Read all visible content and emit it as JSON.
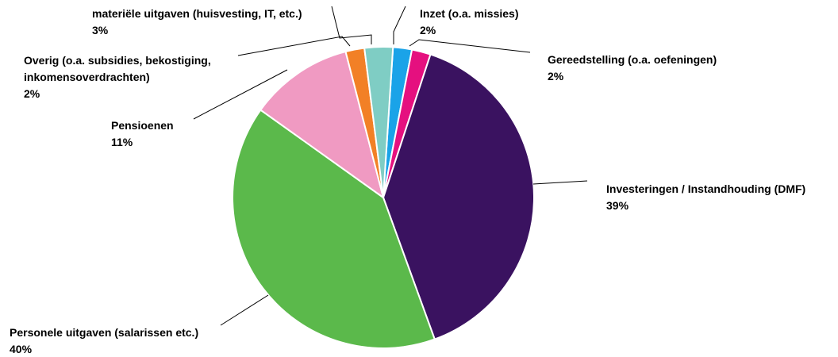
{
  "chart_data": {
    "type": "pie",
    "slices": [
      {
        "label": "Inzet (o.a. missies)",
        "label_lines": [
          "Inzet (o.a. missies)"
        ],
        "pct_text": "2%",
        "value": 2,
        "color": "#1aa3e8"
      },
      {
        "label": "Gereedstelling (o.a. oefeningen)",
        "label_lines": [
          "Gereedstelling (o.a. oefeningen)"
        ],
        "pct_text": "2%",
        "value": 2,
        "color": "#e5107f"
      },
      {
        "label": "Investeringen / Instandhouding (DMF)",
        "label_lines": [
          "Investeringen / Instandhouding (DMF)"
        ],
        "pct_text": "39%",
        "value": 39,
        "color": "#3a1260"
      },
      {
        "label": "Personele uitgaven (salarissen etc.)",
        "label_lines": [
          "Personele uitgaven (salarissen etc.)"
        ],
        "pct_text": "40%",
        "value": 40,
        "color": "#5bb94b"
      },
      {
        "label": "Pensioenen",
        "label_lines": [
          "Pensioenen"
        ],
        "pct_text": "11%",
        "value": 11,
        "color": "#f09ac2"
      },
      {
        "label": "Overig (o.a. subsidies, bekostiging, inkomensoverdrachten)",
        "label_lines": [
          "Overig (o.a. subsidies, bekostiging,",
          "inkomensoverdrachten)"
        ],
        "pct_text": "2%",
        "value": 2,
        "color": "#f28026"
      },
      {
        "label": "materiële uitgaven (huisvesting, IT, etc.)",
        "label_lines": [
          "materiële uitgaven (huisvesting, IT, etc.)"
        ],
        "pct_text": "3%",
        "value": 3,
        "color": "#7fcdc4"
      }
    ]
  }
}
